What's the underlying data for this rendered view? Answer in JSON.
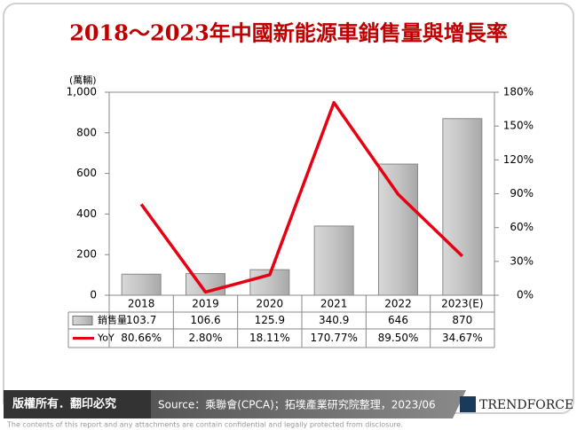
{
  "chart_data": {
    "type": "bar-line",
    "title": "2018～2023年中國新能源車銷售量與增長率",
    "y_label": "(萬輛)",
    "categories": [
      "2018",
      "2019",
      "2020",
      "2021",
      "2022",
      "2023(E)"
    ],
    "series": [
      {
        "name": "銷售量",
        "type": "bar",
        "color": "#b8b8b8",
        "values": [
          103.7,
          106.6,
          125.9,
          340.9,
          646,
          870
        ]
      },
      {
        "name": "YoY",
        "type": "line",
        "axis": "y2",
        "color": "#e60012",
        "values": [
          80.66,
          2.8,
          18.11,
          170.77,
          89.5,
          34.67
        ],
        "value_labels": [
          "80.66%",
          "2.80%",
          "18.11%",
          "170.77%",
          "89.50%",
          "34.67%"
        ]
      }
    ],
    "ylim": [
      0,
      1000
    ],
    "yticks": [
      0,
      200,
      400,
      600,
      800,
      {
        "value": 1000,
        "label": "1,000"
      }
    ],
    "y2lim": [
      0,
      180
    ],
    "y2ticks": [
      {
        "value": 0,
        "label": "0%"
      },
      {
        "value": 30,
        "label": "30%"
      },
      {
        "value": 60,
        "label": "60%"
      },
      {
        "value": 90,
        "label": "90%"
      },
      {
        "value": 120,
        "label": "120%"
      },
      {
        "value": 150,
        "label": "150%"
      },
      {
        "value": 180,
        "label": "180%"
      }
    ],
    "grid": false
  },
  "footer": {
    "copyright": "版權所有．翻印必究",
    "source": "Source：乘聯會(CPCA)；拓墣產業研究院整理，2023/06",
    "brand": "TRENDFORCE",
    "disclaimer": "The contents of this report and any attachments are contain confidential and legally protected from disclosure."
  }
}
